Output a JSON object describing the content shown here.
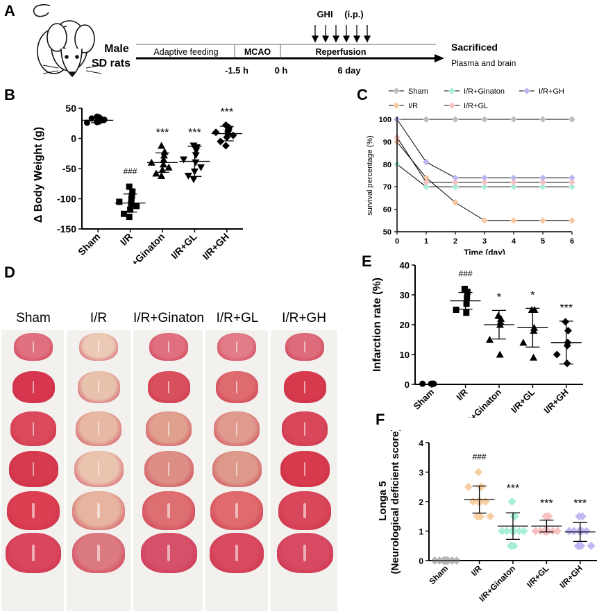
{
  "panels": {
    "A": "A",
    "B": "B",
    "C": "C",
    "D": "D",
    "E": "E",
    "F": "F"
  },
  "panel_a": {
    "subject_line1": "Male",
    "subject_line2": "SD rats",
    "phases": [
      "Adaptive feeding",
      "MCAO",
      "Reperfusion"
    ],
    "times": [
      "-1.5 h",
      "0 h",
      "6 day"
    ],
    "treatment": "GHI",
    "route": "(i.p.)",
    "end_label": "Sacrificed",
    "end_sub": "Plasma and brain"
  },
  "panel_d": {
    "groups": [
      "Sham",
      "I/R",
      "I/R+Ginaton",
      "I/R+GL",
      "I/R+GH"
    ],
    "tones": [
      [
        "#e0707f",
        "#d8364f",
        "#db4a5c",
        "#d63a4e",
        "#dc3f52",
        "#d9465e"
      ],
      [
        "#ecc9b6",
        "#e9c2ae",
        "#e7b9a4",
        "#ebc4b0",
        "#e6b49f",
        "#dc7a82"
      ],
      [
        "#e0707f",
        "#d8505e",
        "#e0a08e",
        "#dd8f86",
        "#dd6f72",
        "#d6506a"
      ],
      [
        "#e27c86",
        "#dd6b6f",
        "#e09a8e",
        "#dd9a8a",
        "#df6b6d",
        "#d84a60"
      ],
      [
        "#dd6b79",
        "#d63a4c",
        "#d9485a",
        "#d73a4c",
        "#d9475a",
        "#d74a62"
      ]
    ]
  },
  "chart_data": [
    {
      "id": "B",
      "type": "scatter",
      "title": "",
      "ylabel": "Δ Body Weight  (g)",
      "ylim": [
        -150,
        50
      ],
      "yticks": [
        50,
        0,
        -50,
        -100,
        -150
      ],
      "categories": [
        "Sham",
        "I/R",
        "I/R+Ginaton",
        "I/R+GL",
        "I/R+GH"
      ],
      "markers": [
        "circle",
        "square",
        "triangle",
        "triangle-down",
        "diamond"
      ],
      "points": [
        [
          36,
          33,
          30,
          28,
          26,
          35,
          31,
          29,
          33,
          27
        ],
        [
          -80,
          -88,
          -95,
          -100,
          -105,
          -108,
          -112,
          -118,
          -125,
          -130
        ],
        [
          -12,
          -22,
          -28,
          -35,
          -40,
          -43,
          -48,
          -52,
          -58,
          -62
        ],
        [
          -12,
          -15,
          -20,
          -28,
          -35,
          -40,
          -48,
          -55,
          -62,
          -68
        ],
        [
          22,
          18,
          15,
          12,
          10,
          8,
          5,
          2,
          -5,
          -12
        ]
      ],
      "mean": [
        30,
        -107,
        -40,
        -38,
        8
      ],
      "sd": [
        4,
        15,
        16,
        25,
        12
      ],
      "annotations": [
        "",
        "###",
        "***",
        "***",
        "***"
      ]
    },
    {
      "id": "C",
      "type": "line",
      "xlabel": "Time (day)",
      "ylabel": "survival percentage (%)",
      "xlim": [
        0,
        6
      ],
      "ylim": [
        50,
        100
      ],
      "xticks": [
        0,
        1,
        2,
        3,
        4,
        5,
        6
      ],
      "yticks": [
        100,
        90,
        80,
        70,
        60,
        50
      ],
      "series": [
        {
          "name": "Sham",
          "color": "#bdbdbd",
          "values": [
            100,
            100,
            100,
            100,
            100,
            100,
            100
          ]
        },
        {
          "name": "I/R",
          "color": "#f7c7a0",
          "values": [
            90,
            74,
            63,
            55,
            55,
            55,
            55
          ]
        },
        {
          "name": "I/R+Ginaton",
          "color": "#a7ecd5",
          "values": [
            80,
            70,
            70,
            70,
            70,
            70,
            70
          ]
        },
        {
          "name": "I/R+GL",
          "color": "#f8c1c1",
          "values": [
            92,
            72,
            72,
            72,
            72,
            72,
            72
          ]
        },
        {
          "name": "I/R+GH",
          "color": "#bcb5ef",
          "values": [
            100,
            81,
            74,
            74,
            74,
            74,
            74
          ]
        }
      ]
    },
    {
      "id": "E",
      "type": "scatter",
      "ylabel": "Infarction rate (%)",
      "ylim": [
        0,
        40
      ],
      "yticks": [
        40,
        30,
        20,
        10,
        0
      ],
      "categories": [
        "Sham",
        "I/R",
        "I/R+Ginaton",
        "I/R+GL",
        "I/R+GH"
      ],
      "markers": [
        "circle",
        "square",
        "triangle",
        "triangle",
        "diamond"
      ],
      "points": [
        [
          0.2,
          0.2,
          0.2,
          0.2,
          0.2,
          0.2
        ],
        [
          32,
          31,
          29,
          27,
          25,
          24
        ],
        [
          23,
          22,
          21,
          20,
          15,
          10
        ],
        [
          25,
          25,
          19,
          18,
          14,
          9
        ],
        [
          21,
          18,
          14,
          13,
          10,
          7
        ]
      ],
      "mean": [
        0,
        28,
        20,
        19,
        14
      ],
      "sd": [
        0,
        2.8,
        4.8,
        6.5,
        7.2
      ],
      "annotations": [
        "",
        "###",
        "*",
        "*",
        "***"
      ]
    },
    {
      "id": "F",
      "type": "scatter",
      "ylabel": "Longa 5",
      "ylabel2": "(Neurological deficient score)",
      "ylim": [
        0,
        4
      ],
      "yticks": [
        4,
        3,
        2,
        1,
        0
      ],
      "categories": [
        "Sham",
        "I/R",
        "I/R+Ginaton",
        "I/R+GL",
        "I/R+GH"
      ],
      "markers": [
        "diamond",
        "diamond",
        "diamond",
        "diamond",
        "diamond"
      ],
      "colors": [
        "#b5b5b5",
        "#f7cfa2",
        "#a9efd6",
        "#f7c2c2",
        "#c0b8f2"
      ],
      "points": [
        [
          0,
          0,
          0,
          0,
          0,
          0,
          0,
          0,
          0,
          0,
          0,
          0,
          0,
          0,
          0
        ],
        [
          3,
          2.5,
          2.5,
          2.5,
          2.5,
          2,
          2,
          2,
          2,
          2,
          1.5,
          1.5,
          1.5,
          1.5,
          1.5
        ],
        [
          2,
          1.5,
          1.5,
          1.5,
          1,
          1,
          1,
          1,
          1,
          1,
          1,
          0.5,
          0.5,
          0.5,
          0.5
        ],
        [
          1.5,
          1.5,
          1.5,
          1,
          1,
          1,
          1,
          1,
          1,
          1,
          1,
          1,
          1,
          1,
          1
        ],
        [
          1.5,
          1.5,
          1,
          1,
          1,
          1,
          1,
          1,
          1,
          1,
          0.5,
          0.5,
          0.5,
          0.5,
          0.5
        ]
      ],
      "mean": [
        0,
        2.07,
        1.17,
        1.17,
        0.97
      ],
      "sd": [
        0,
        0.46,
        0.45,
        0.2,
        0.32
      ],
      "annotations": [
        "",
        "###",
        "***",
        "***",
        "***"
      ]
    }
  ]
}
